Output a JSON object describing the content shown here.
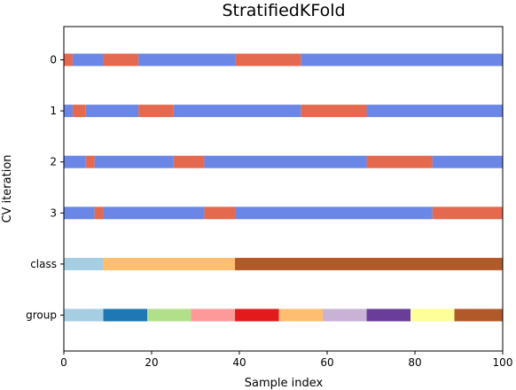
{
  "chart_data": {
    "type": "bar",
    "title": "StratifiedKFold",
    "xlabel": "Sample index",
    "ylabel": "CV iteration",
    "xlim": [
      0,
      100
    ],
    "x_ticks": [
      "0",
      "20",
      "40",
      "60",
      "80",
      "100"
    ],
    "x_tick_values": [
      0,
      20,
      40,
      60,
      80,
      100
    ],
    "grid": false,
    "legend": "none",
    "colors": {
      "train": "#6a87e8",
      "test": "#e5694f"
    },
    "rows": [
      {
        "label": "0",
        "segments": [
          {
            "start": 0,
            "end": 2,
            "kind": "test"
          },
          {
            "start": 2,
            "end": 9,
            "kind": "train"
          },
          {
            "start": 9,
            "end": 17,
            "kind": "test"
          },
          {
            "start": 17,
            "end": 39,
            "kind": "train"
          },
          {
            "start": 39,
            "end": 54,
            "kind": "test"
          },
          {
            "start": 54,
            "end": 100,
            "kind": "train"
          }
        ]
      },
      {
        "label": "1",
        "segments": [
          {
            "start": 0,
            "end": 2,
            "kind": "train"
          },
          {
            "start": 2,
            "end": 5,
            "kind": "test"
          },
          {
            "start": 5,
            "end": 17,
            "kind": "train"
          },
          {
            "start": 17,
            "end": 25,
            "kind": "test"
          },
          {
            "start": 25,
            "end": 54,
            "kind": "train"
          },
          {
            "start": 54,
            "end": 69,
            "kind": "test"
          },
          {
            "start": 69,
            "end": 100,
            "kind": "train"
          }
        ]
      },
      {
        "label": "2",
        "segments": [
          {
            "start": 0,
            "end": 5,
            "kind": "train"
          },
          {
            "start": 5,
            "end": 7,
            "kind": "test"
          },
          {
            "start": 7,
            "end": 25,
            "kind": "train"
          },
          {
            "start": 25,
            "end": 32,
            "kind": "test"
          },
          {
            "start": 32,
            "end": 69,
            "kind": "train"
          },
          {
            "start": 69,
            "end": 84,
            "kind": "test"
          },
          {
            "start": 84,
            "end": 100,
            "kind": "train"
          }
        ]
      },
      {
        "label": "3",
        "segments": [
          {
            "start": 0,
            "end": 7,
            "kind": "train"
          },
          {
            "start": 7,
            "end": 9,
            "kind": "test"
          },
          {
            "start": 9,
            "end": 32,
            "kind": "train"
          },
          {
            "start": 32,
            "end": 39,
            "kind": "test"
          },
          {
            "start": 39,
            "end": 84,
            "kind": "train"
          },
          {
            "start": 84,
            "end": 100,
            "kind": "test"
          }
        ]
      },
      {
        "label": "class",
        "segments": [
          {
            "start": 0,
            "end": 9,
            "color": "#a6cee3"
          },
          {
            "start": 9,
            "end": 39,
            "color": "#fdbf6f"
          },
          {
            "start": 39,
            "end": 100,
            "color": "#b15928"
          }
        ]
      },
      {
        "label": "group",
        "segments": [
          {
            "start": 0,
            "end": 9,
            "color": "#a6cee3"
          },
          {
            "start": 9,
            "end": 19,
            "color": "#1f78b4"
          },
          {
            "start": 19,
            "end": 29,
            "color": "#b2df8a"
          },
          {
            "start": 29,
            "end": 39,
            "color": "#fb9a99"
          },
          {
            "start": 39,
            "end": 49,
            "color": "#e31a1c"
          },
          {
            "start": 49,
            "end": 59,
            "color": "#fdbf6f"
          },
          {
            "start": 59,
            "end": 69,
            "color": "#cab2d6"
          },
          {
            "start": 69,
            "end": 79,
            "color": "#6a3d9a"
          },
          {
            "start": 79,
            "end": 89,
            "color": "#ffff99"
          },
          {
            "start": 89,
            "end": 100,
            "color": "#b15928"
          }
        ]
      }
    ]
  }
}
